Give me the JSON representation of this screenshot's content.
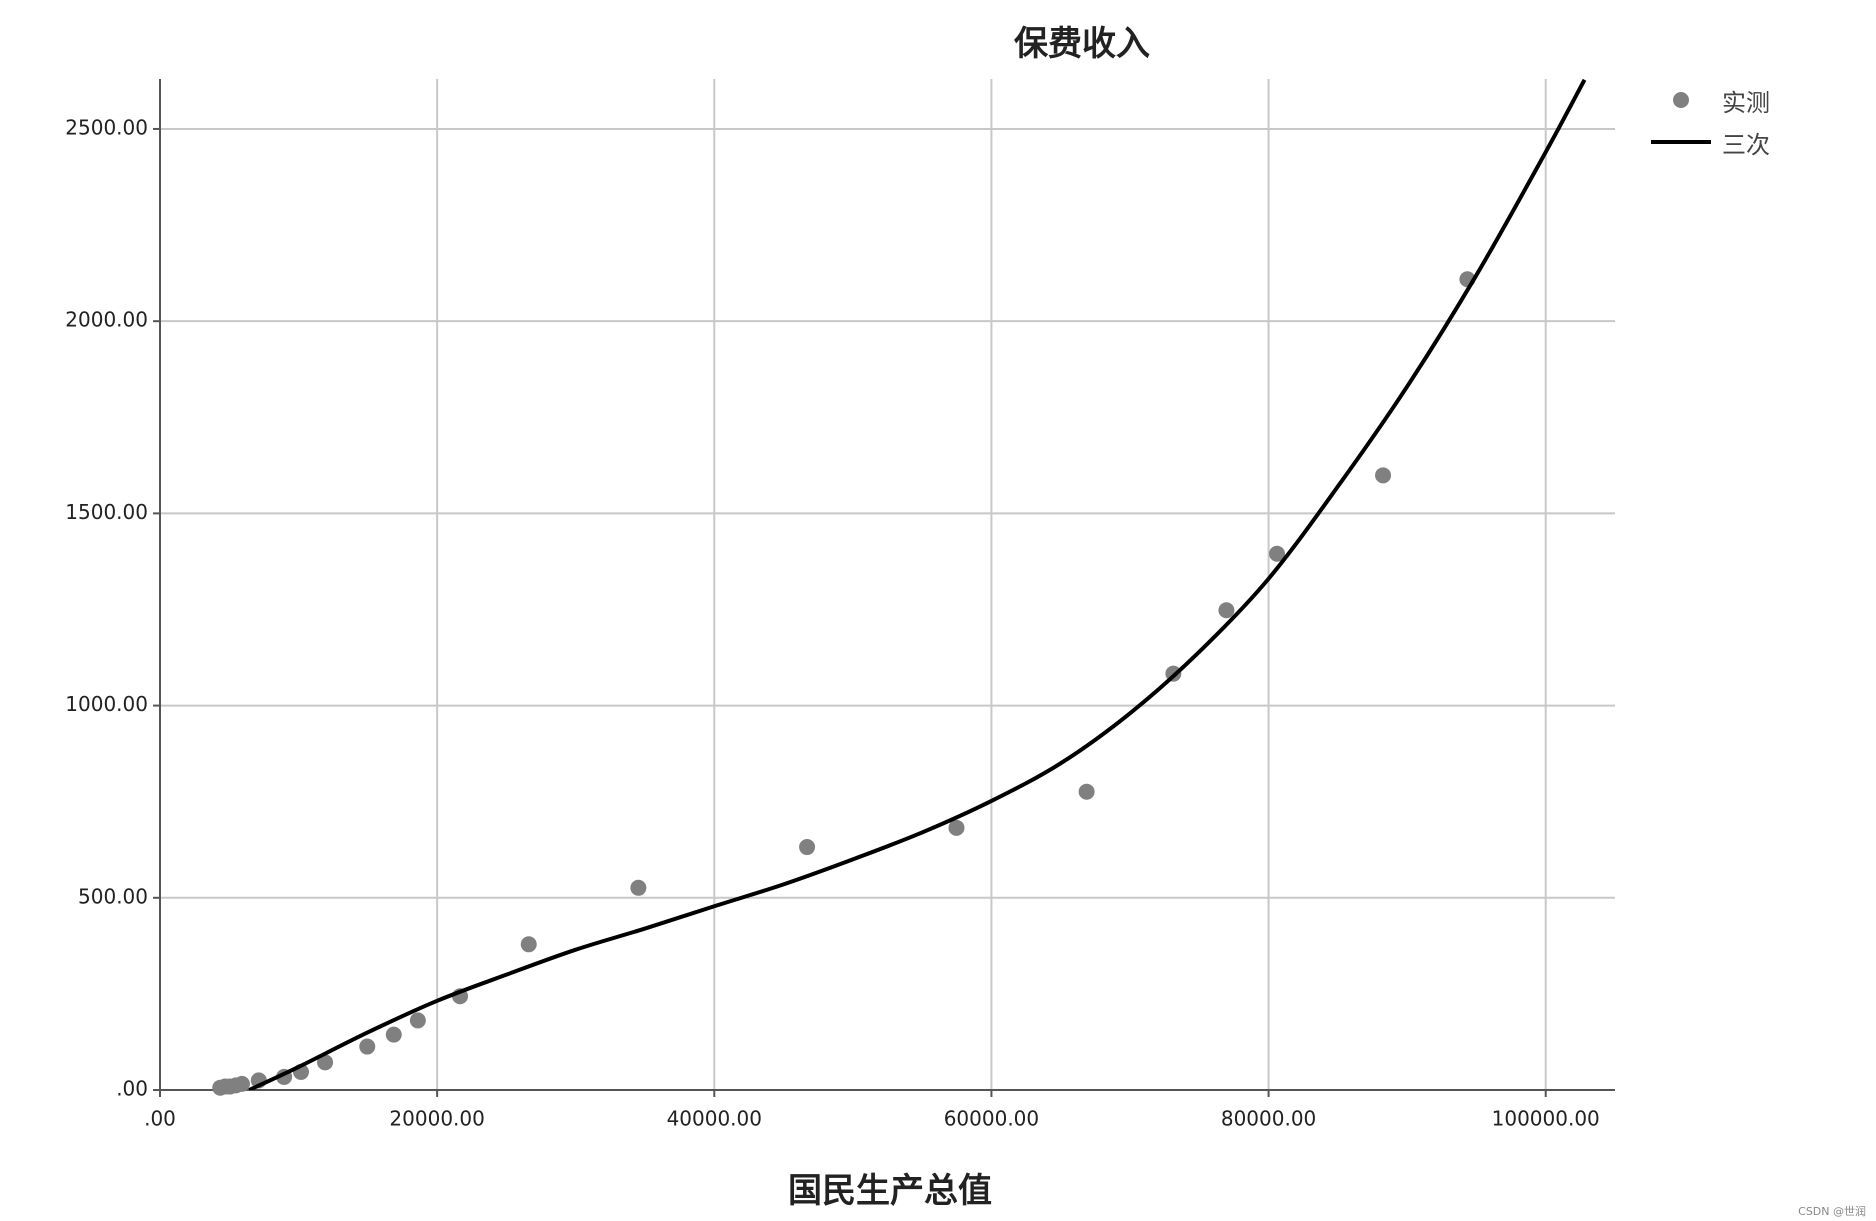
{
  "chart_data": {
    "type": "scatter",
    "title": "保费收入",
    "x_label": "国民生产总值",
    "xlim": [
      0,
      105000
    ],
    "ylim": [
      0,
      2630
    ],
    "xticks": [
      {
        "value": 0,
        "label": ".00"
      },
      {
        "value": 20000,
        "label": "20000.00"
      },
      {
        "value": 40000,
        "label": "40000.00"
      },
      {
        "value": 60000,
        "label": "60000.00"
      },
      {
        "value": 80000,
        "label": "80000.00"
      },
      {
        "value": 100000,
        "label": "100000.00"
      }
    ],
    "yticks": [
      {
        "value": 0,
        "label": ".00"
      },
      {
        "value": 500,
        "label": "500.00"
      },
      {
        "value": 1000,
        "label": "1000.00"
      },
      {
        "value": 1500,
        "label": "1500.00"
      },
      {
        "value": 2000,
        "label": "2000.00"
      },
      {
        "value": 2500,
        "label": "2500.00"
      }
    ],
    "grid": true,
    "legend": "top-right",
    "series": [
      {
        "name": "实测",
        "color": "#808080",
        "type": "scatter",
        "x": [
          4348,
          4696,
          5043,
          5478,
          5913,
          7130,
          8957,
          10174,
          11913,
          14957,
          16870,
          18609,
          21652,
          26609,
          34522,
          46696,
          57478,
          66870,
          73130,
          76957,
          80609,
          88261,
          94348
        ],
        "values": [
          6,
          9,
          9,
          12,
          16,
          25,
          34,
          47,
          72,
          113,
          144,
          181,
          244,
          379,
          526,
          632,
          682,
          776,
          1083,
          1248,
          1395,
          1599,
          2109
        ]
      },
      {
        "name": "三次",
        "color": "#000000",
        "type": "line",
        "x": [
          6435,
          10000,
          15000,
          20000,
          25000,
          30000,
          35000,
          40000,
          45000,
          50000,
          55000,
          60000,
          65000,
          70000,
          75000,
          80000,
          85000,
          90000,
          95000,
          100000,
          102800
        ],
        "values": [
          0,
          60,
          150,
          232,
          300,
          365,
          420,
          478,
          535,
          600,
          670,
          752,
          850,
          980,
          1140,
          1330,
          1570,
          1830,
          2120,
          2440,
          2628
        ]
      }
    ],
    "watermark": "CSDN @世润"
  }
}
